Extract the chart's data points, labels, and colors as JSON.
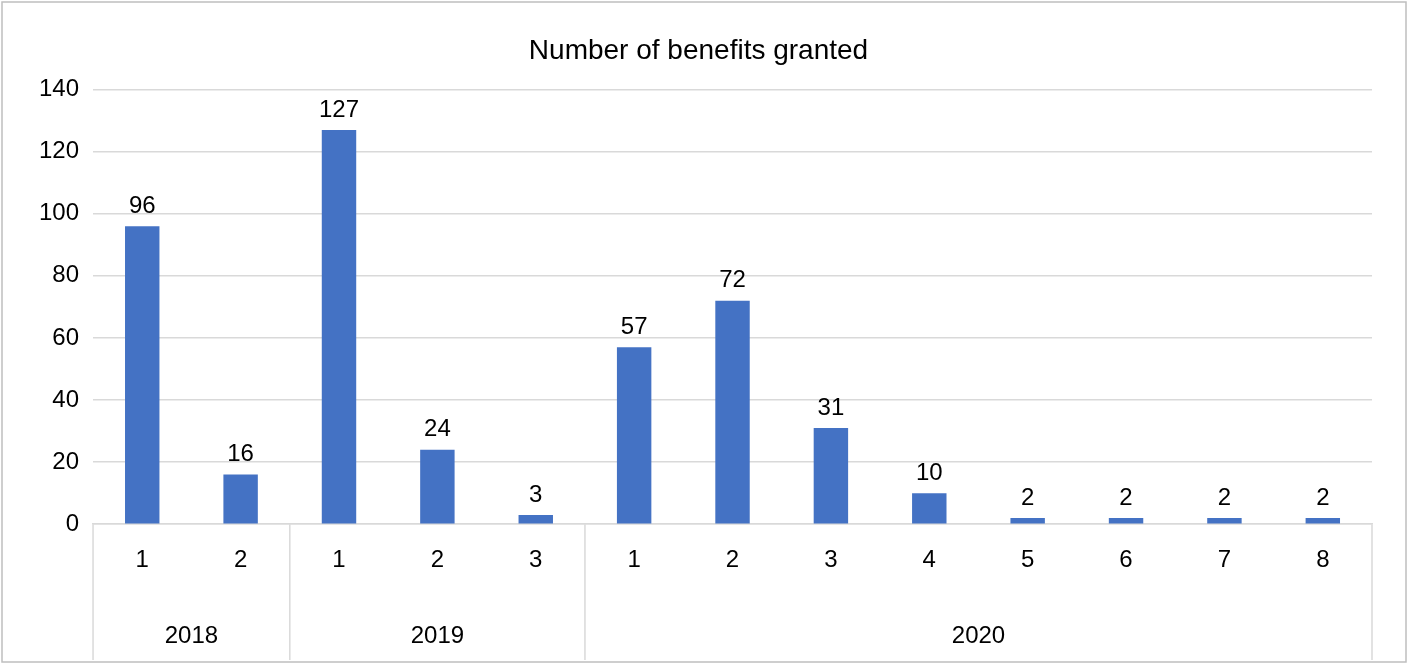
{
  "chart_data": {
    "type": "bar",
    "title": "Number of benefits granted",
    "categories": [
      "1",
      "2",
      "1",
      "2",
      "3",
      "1",
      "2",
      "3",
      "4",
      "5",
      "6",
      "7",
      "8"
    ],
    "values": [
      96,
      16,
      127,
      24,
      3,
      57,
      72,
      31,
      10,
      2,
      2,
      2,
      2
    ],
    "color": "#4472c4",
    "ylim": [
      0,
      140
    ],
    "yticks": [
      0,
      20,
      40,
      60,
      80,
      100,
      120,
      140
    ],
    "grid": "y",
    "legend": false,
    "data_labels": true,
    "annotations": [
      "2018",
      "2019",
      "2020"
    ]
  }
}
